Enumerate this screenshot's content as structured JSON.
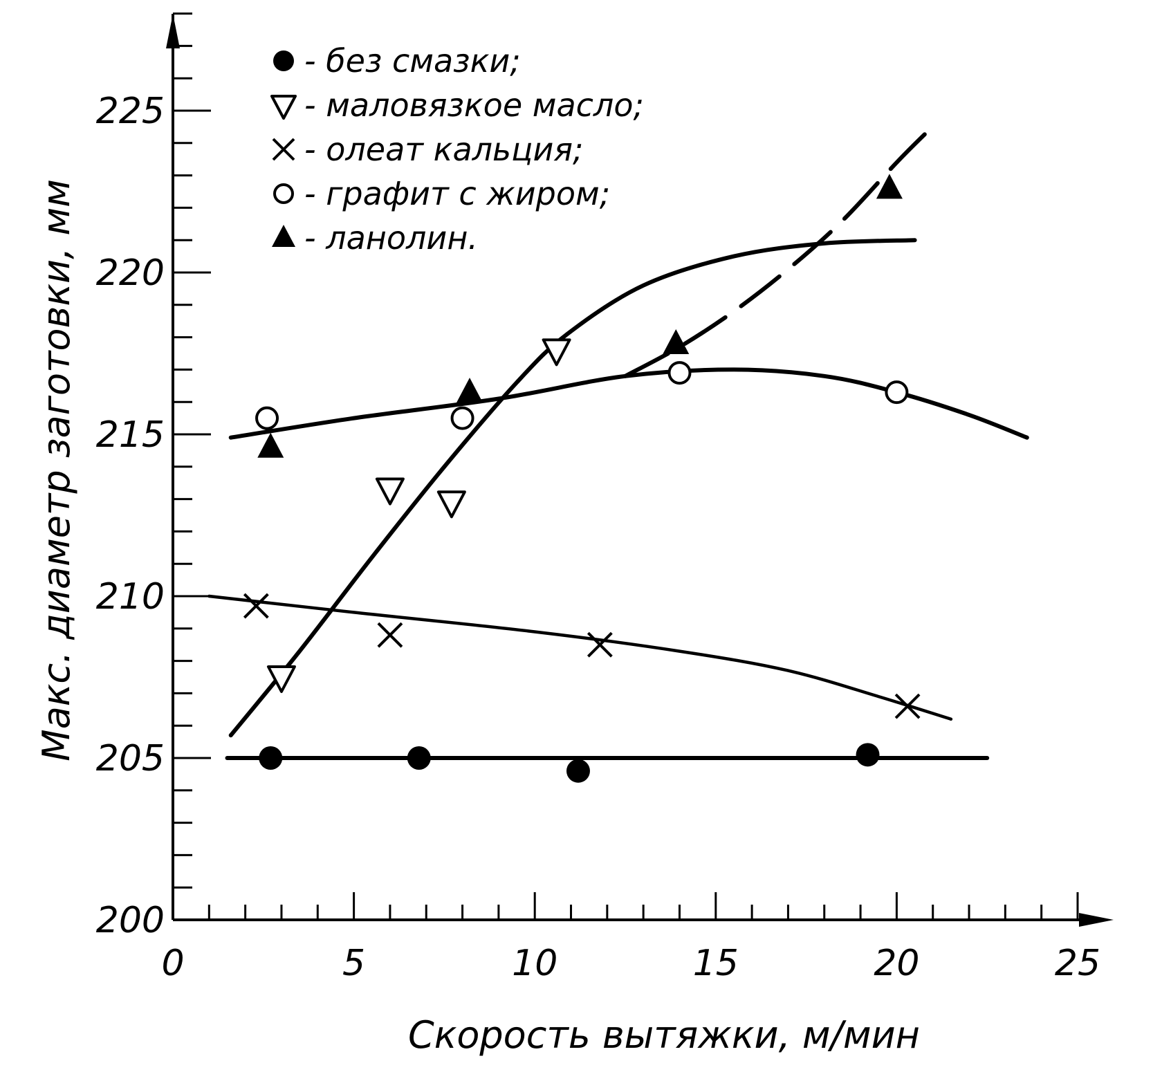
{
  "chart_data": {
    "type": "scatter",
    "title": "",
    "xlabel": "Скорость вытяжки, м/мин",
    "ylabel": "Макс. диаметр заготовки, мм",
    "xlim": [
      0,
      25
    ],
    "ylim": [
      200,
      229
    ],
    "x_ticks": [
      "0",
      "5",
      "10",
      "15",
      "20",
      "25"
    ],
    "y_ticks": [
      "200",
      "205",
      "210",
      "215",
      "220",
      "225"
    ],
    "grid": false,
    "legend_position": "top-left",
    "series": [
      {
        "name": "без смазки",
        "marker": "filled-circle",
        "line_style": "solid",
        "points": [
          [
            2.7,
            205.0
          ],
          [
            6.8,
            205.0
          ],
          [
            11.2,
            204.6
          ],
          [
            19.2,
            205.1
          ]
        ],
        "curve": [
          [
            1.5,
            205.0
          ],
          [
            22.5,
            205.0
          ]
        ]
      },
      {
        "name": "маловязкое масло",
        "marker": "open-triangle-down",
        "line_style": "solid",
        "points": [
          [
            3.0,
            207.5
          ],
          [
            6.0,
            213.3
          ],
          [
            7.7,
            212.9
          ],
          [
            10.6,
            217.6
          ]
        ],
        "curve": [
          [
            1.6,
            205.7
          ],
          [
            3.5,
            208.3
          ],
          [
            5.5,
            211.2
          ],
          [
            7.5,
            214.0
          ],
          [
            9.5,
            216.6
          ],
          [
            10.9,
            218.1
          ],
          [
            13.0,
            219.6
          ],
          [
            15.5,
            220.5
          ],
          [
            18.0,
            220.9
          ],
          [
            20.5,
            221.0
          ]
        ]
      },
      {
        "name": "олеат кальция",
        "marker": "cross",
        "line_style": "solid",
        "points": [
          [
            2.3,
            209.7
          ],
          [
            6.0,
            208.8
          ],
          [
            11.8,
            208.5
          ],
          [
            20.3,
            206.6
          ]
        ],
        "curve": [
          [
            1.0,
            210.0
          ],
          [
            5.0,
            209.5
          ],
          [
            10.0,
            208.9
          ],
          [
            14.0,
            208.3
          ],
          [
            17.0,
            207.7
          ],
          [
            19.5,
            206.9
          ],
          [
            21.5,
            206.2
          ]
        ]
      },
      {
        "name": "графит с жиром",
        "marker": "open-circle",
        "line_style": "solid",
        "points": [
          [
            2.6,
            215.5
          ],
          [
            8.0,
            215.5
          ],
          [
            14.0,
            216.9
          ],
          [
            20.0,
            216.3
          ]
        ],
        "curve": [
          [
            1.6,
            214.9
          ],
          [
            5.0,
            215.5
          ],
          [
            9.0,
            216.1
          ],
          [
            12.5,
            216.8
          ],
          [
            15.5,
            217.0
          ],
          [
            18.0,
            216.8
          ],
          [
            20.0,
            216.3
          ],
          [
            22.0,
            215.6
          ],
          [
            23.6,
            214.9
          ]
        ]
      },
      {
        "name": "ланолин",
        "marker": "filled-triangle-up",
        "line_style": "dashed",
        "points": [
          [
            2.7,
            214.6
          ],
          [
            8.2,
            216.3
          ],
          [
            13.9,
            217.8
          ],
          [
            19.8,
            222.6
          ]
        ],
        "curve": [
          [
            12.5,
            216.8
          ],
          [
            14.0,
            217.7
          ],
          [
            15.5,
            218.8
          ],
          [
            17.0,
            220.1
          ],
          [
            18.5,
            221.6
          ],
          [
            20.0,
            223.4
          ],
          [
            20.8,
            224.3
          ]
        ]
      }
    ]
  }
}
